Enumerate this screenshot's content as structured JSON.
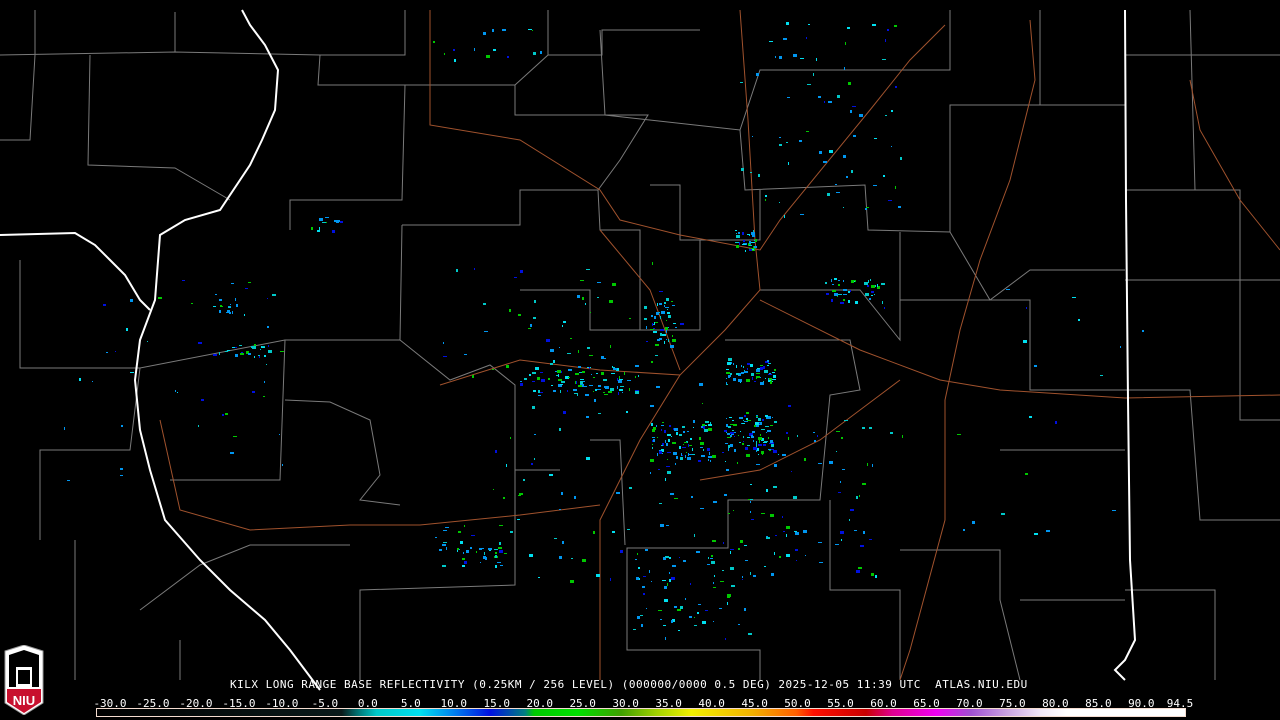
{
  "title": "KILX LONG RANGE BASE REFLECTIVITY (0.25KM / 256 LEVEL) (000000/0000 0.5 DEG) 2025-12-05 11:39 UTC  ATLAS.NIU.EDU",
  "logo": {
    "text": "NIU",
    "icon": "niu-logo-icon"
  },
  "legend": {
    "labels": [
      "-30.0",
      "-25.0",
      "-20.0",
      "-15.0",
      "-10.0",
      "-5.0",
      "0.0",
      "5.0",
      "10.0",
      "15.0",
      "20.0",
      "25.0",
      "30.0",
      "35.0",
      "40.0",
      "45.0",
      "50.0",
      "55.0",
      "60.0",
      "65.0",
      "70.0",
      "75.0",
      "80.0",
      "85.0",
      "90.0",
      "94.5"
    ],
    "min": -30,
    "max": 94.5,
    "color_stops": [
      {
        "v": -30,
        "c": "#000000"
      },
      {
        "v": -2,
        "c": "#0a1a1a"
      },
      {
        "v": 0,
        "c": "#007a7a"
      },
      {
        "v": 2,
        "c": "#00c8c8"
      },
      {
        "v": 7,
        "c": "#00e0f0"
      },
      {
        "v": 10,
        "c": "#0096f0"
      },
      {
        "v": 15,
        "c": "#0010e0"
      },
      {
        "v": 19,
        "c": "#008080"
      },
      {
        "v": 20,
        "c": "#00c800"
      },
      {
        "v": 25,
        "c": "#00e000"
      },
      {
        "v": 30,
        "c": "#40a000"
      },
      {
        "v": 34,
        "c": "#a0d000"
      },
      {
        "v": 38,
        "c": "#f0f000"
      },
      {
        "v": 45,
        "c": "#f0b000"
      },
      {
        "v": 50,
        "c": "#ff6000"
      },
      {
        "v": 52,
        "c": "#ff1000"
      },
      {
        "v": 58,
        "c": "#c80000"
      },
      {
        "v": 61,
        "c": "#e00090"
      },
      {
        "v": 66,
        "c": "#f000f0"
      },
      {
        "v": 70,
        "c": "#a050d0"
      },
      {
        "v": 74,
        "c": "#c8a0e0"
      },
      {
        "v": 78,
        "c": "#f0e8f8"
      },
      {
        "v": 81,
        "c": "#ffffff"
      },
      {
        "v": 94.5,
        "c": "#ffffff"
      }
    ]
  },
  "colors": {
    "state_border": "#ffffff",
    "county_border": "#808080",
    "highway": "#a0522d"
  }
}
